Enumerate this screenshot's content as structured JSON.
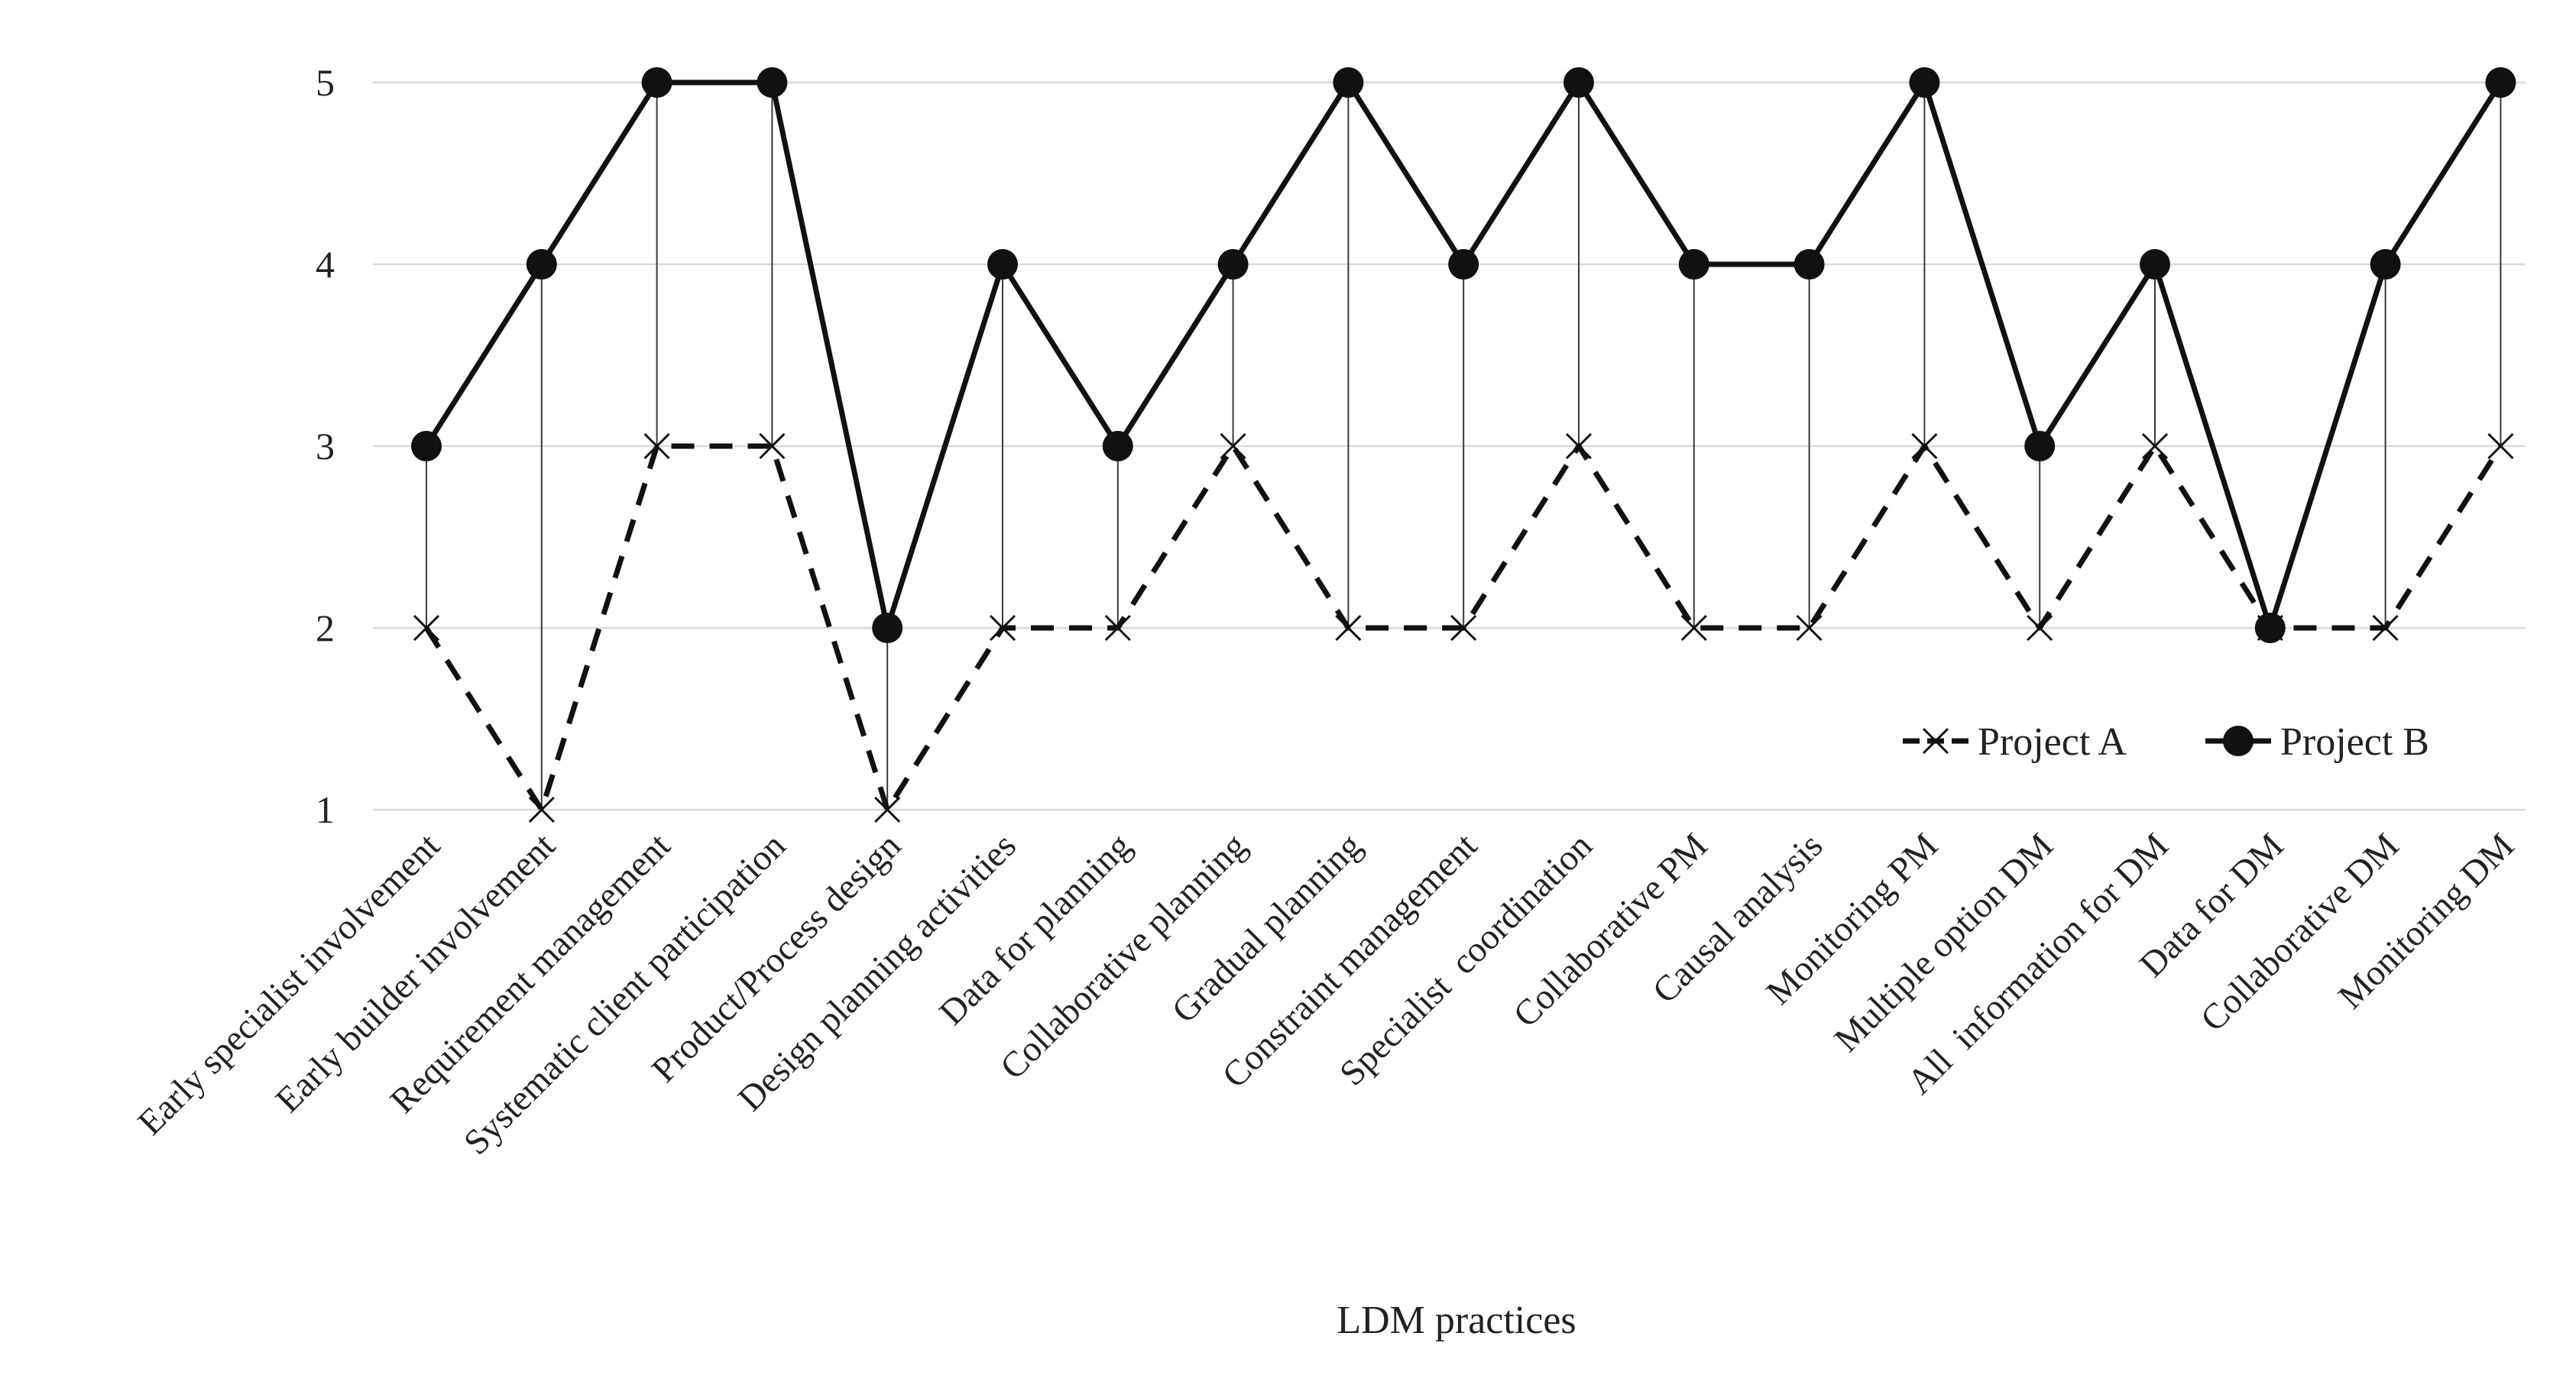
{
  "chart_data": {
    "type": "line",
    "title": "",
    "xlabel": "LDM practices",
    "ylabel": "",
    "ylim": [
      1,
      5
    ],
    "yticks": [
      1,
      2,
      3,
      4,
      5
    ],
    "grid": true,
    "legend_position": "bottom-right",
    "categories": [
      "Early specialist involvement",
      "Early builder involvement",
      "Requirement management",
      "Systematic client participation",
      "Product/Process design",
      "Design planning activities",
      "Data for planning",
      "Collaborative planning",
      "Gradual planning",
      "Constraint management",
      "Specialist  coordination",
      "Collaborative PM",
      "Causal analysis",
      "Monitoring PM",
      "Multiple option DM",
      "All  information for DM",
      "Data for DM",
      "Collaborative DM",
      "Monitoring DM"
    ],
    "series": [
      {
        "name": "Project A",
        "marker": "x",
        "line": "dashed",
        "color": "#111111",
        "values": [
          2,
          1,
          3,
          3,
          1,
          2,
          2,
          3,
          2,
          2,
          3,
          2,
          2,
          3,
          2,
          3,
          2,
          2,
          3
        ]
      },
      {
        "name": "Project B",
        "marker": "circle",
        "line": "solid",
        "color": "#111111",
        "values": [
          3,
          4,
          5,
          5,
          2,
          4,
          3,
          4,
          5,
          4,
          5,
          4,
          4,
          5,
          3,
          4,
          2,
          4,
          5
        ]
      }
    ]
  }
}
